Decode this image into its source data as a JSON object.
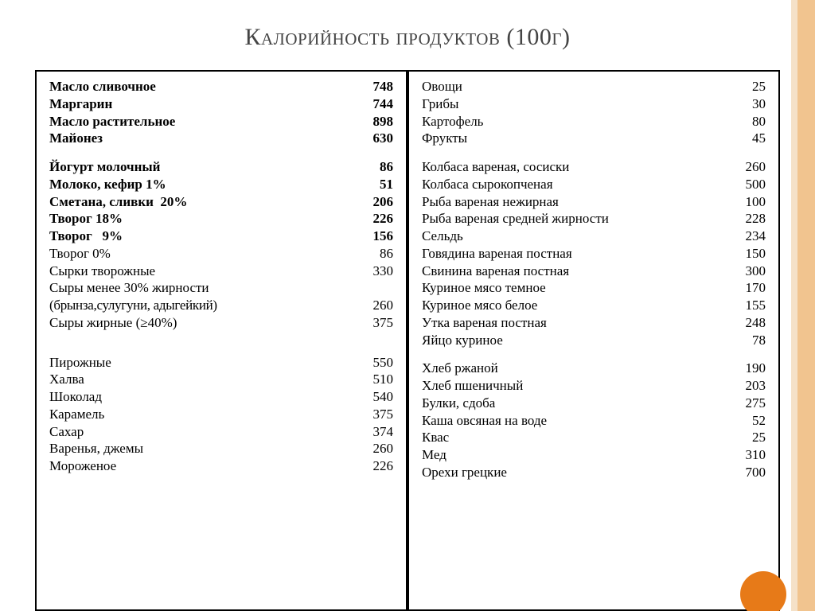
{
  "title": "Калорийность продуктов (100г)",
  "title_fontsize": 30,
  "body_fontsize": 17,
  "colors": {
    "accent": "#e77a18",
    "border": "#000000",
    "text": "#000000",
    "sidebar": "#f1c48f",
    "sidebar_inner": "#f5e1c8",
    "bg": "#ffffff"
  },
  "left": [
    {
      "name": "Масло сливочное",
      "val": "748",
      "bold": true
    },
    {
      "name": "Маргарин",
      "val": "744",
      "bold": true
    },
    {
      "name": "Масло растительное",
      "val": "898",
      "bold": true
    },
    {
      "name": "Майонез",
      "val": "630",
      "bold": true
    },
    {
      "blank": true
    },
    {
      "name": "Йогурт молочный",
      "val": "86",
      "bold": true
    },
    {
      "name": "Молоко, кефир 1%",
      "val": "51",
      "bold": true
    },
    {
      "name": "Сметана, сливки  20%",
      "val": "206",
      "bold": true
    },
    {
      "name": "Творог 18%",
      "val": "226",
      "bold": true
    },
    {
      "name": "Творог   9%",
      "val": "156",
      "bold": true
    },
    {
      "name": "Творог 0%",
      "val": "86"
    },
    {
      "name": "Сырки творожные",
      "val": "330"
    },
    {
      "name": "Сыры менее 30% жирности",
      "val": ""
    },
    {
      "name": "(брынза,сулугуни, адыгейкий)",
      "val": "260",
      "tight": true
    },
    {
      "name": "Сыры жирные (≥40%)",
      "val": "375"
    },
    {
      "blank": true
    },
    {
      "blank": true
    },
    {
      "name": "Пирожные",
      "val": "550"
    },
    {
      "name": "Халва",
      "val": "510"
    },
    {
      "name": "Шоколад",
      "val": "540"
    },
    {
      "name": "Карамель",
      "val": "375"
    },
    {
      "name": "Сахар",
      "val": "374"
    },
    {
      "name": "Варенья, джемы",
      "val": "260"
    },
    {
      "name": "Мороженое",
      "val": "226"
    }
  ],
  "right": [
    {
      "name": "Овощи",
      "val": "25"
    },
    {
      "name": "Грибы",
      "val": "30"
    },
    {
      "name": "Картофель",
      "val": "80"
    },
    {
      "name": "Фрукты",
      "val": "45"
    },
    {
      "blank": true
    },
    {
      "name": "Колбаса вареная, сосиски",
      "val": "260"
    },
    {
      "name": "Колбаса сырокопченая",
      "val": "500"
    },
    {
      "name": "Рыба вареная нежирная",
      "val": "100"
    },
    {
      "name": "Рыба вареная средней жирности",
      "val": "228"
    },
    {
      "name": "Сельдь",
      "val": "234"
    },
    {
      "name": "Говядина вареная постная",
      "val": "150"
    },
    {
      "name": "Свинина вареная постная",
      "val": "300"
    },
    {
      "name": "Куриное мясо темное",
      "val": "170"
    },
    {
      "name": "Куриное мясо белое",
      "val": "155"
    },
    {
      "name": "Утка вареная постная",
      "val": "248"
    },
    {
      "name": "Яйцо куриное",
      "val": "78"
    },
    {
      "blank": true
    },
    {
      "name": "Хлеб ржаной",
      "val": "190"
    },
    {
      "name": "Хлеб пшеничный",
      "val": "203"
    },
    {
      "name": "Булки, сдоба",
      "val": "275"
    },
    {
      "name": "Каша овсяная на воде",
      "val": "52"
    },
    {
      "name": "Квас",
      "val": "25"
    },
    {
      "name": "Мед",
      "val": "310"
    },
    {
      "name": "Орехи грецкие",
      "val": "700"
    }
  ]
}
